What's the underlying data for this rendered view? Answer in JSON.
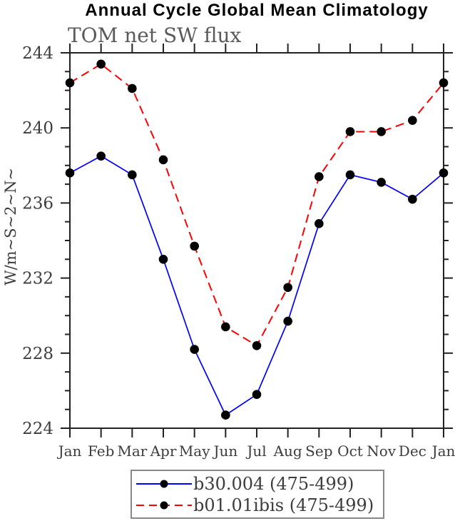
{
  "chart_data": {
    "type": "line",
    "title": "Annual Cycle Global Mean Climatology",
    "subtitle": "TOM net SW flux",
    "ylabel": "W/m~S~2~N~",
    "categories": [
      "Jan",
      "Feb",
      "Mar",
      "Apr",
      "May",
      "Jun",
      "Jul",
      "Aug",
      "Sep",
      "Oct",
      "Nov",
      "Dec",
      "Jan"
    ],
    "ylim": [
      224,
      244
    ],
    "ytick_step": 4,
    "yminor_step": 1,
    "grid": false,
    "legend_position": "bottom-center",
    "series": [
      {
        "name": "b30.004 (475-499)",
        "color": "#0000ff",
        "line_style": "solid",
        "marker": "filled-circle",
        "marker_color": "#000000",
        "values": [
          237.6,
          238.5,
          237.5,
          233.0,
          228.2,
          224.7,
          225.8,
          229.7,
          234.9,
          237.5,
          237.1,
          236.2,
          237.6
        ]
      },
      {
        "name": "b01.01ibis (475-499)",
        "color": "#ff0000",
        "line_style": "dashed",
        "marker": "filled-circle",
        "marker_color": "#000000",
        "values": [
          242.4,
          243.4,
          242.1,
          238.3,
          233.7,
          229.4,
          228.4,
          231.5,
          237.4,
          239.8,
          239.8,
          240.4,
          242.4
        ]
      }
    ],
    "axis_color": "#222222",
    "tick_label_color": "#3d3d3d"
  }
}
